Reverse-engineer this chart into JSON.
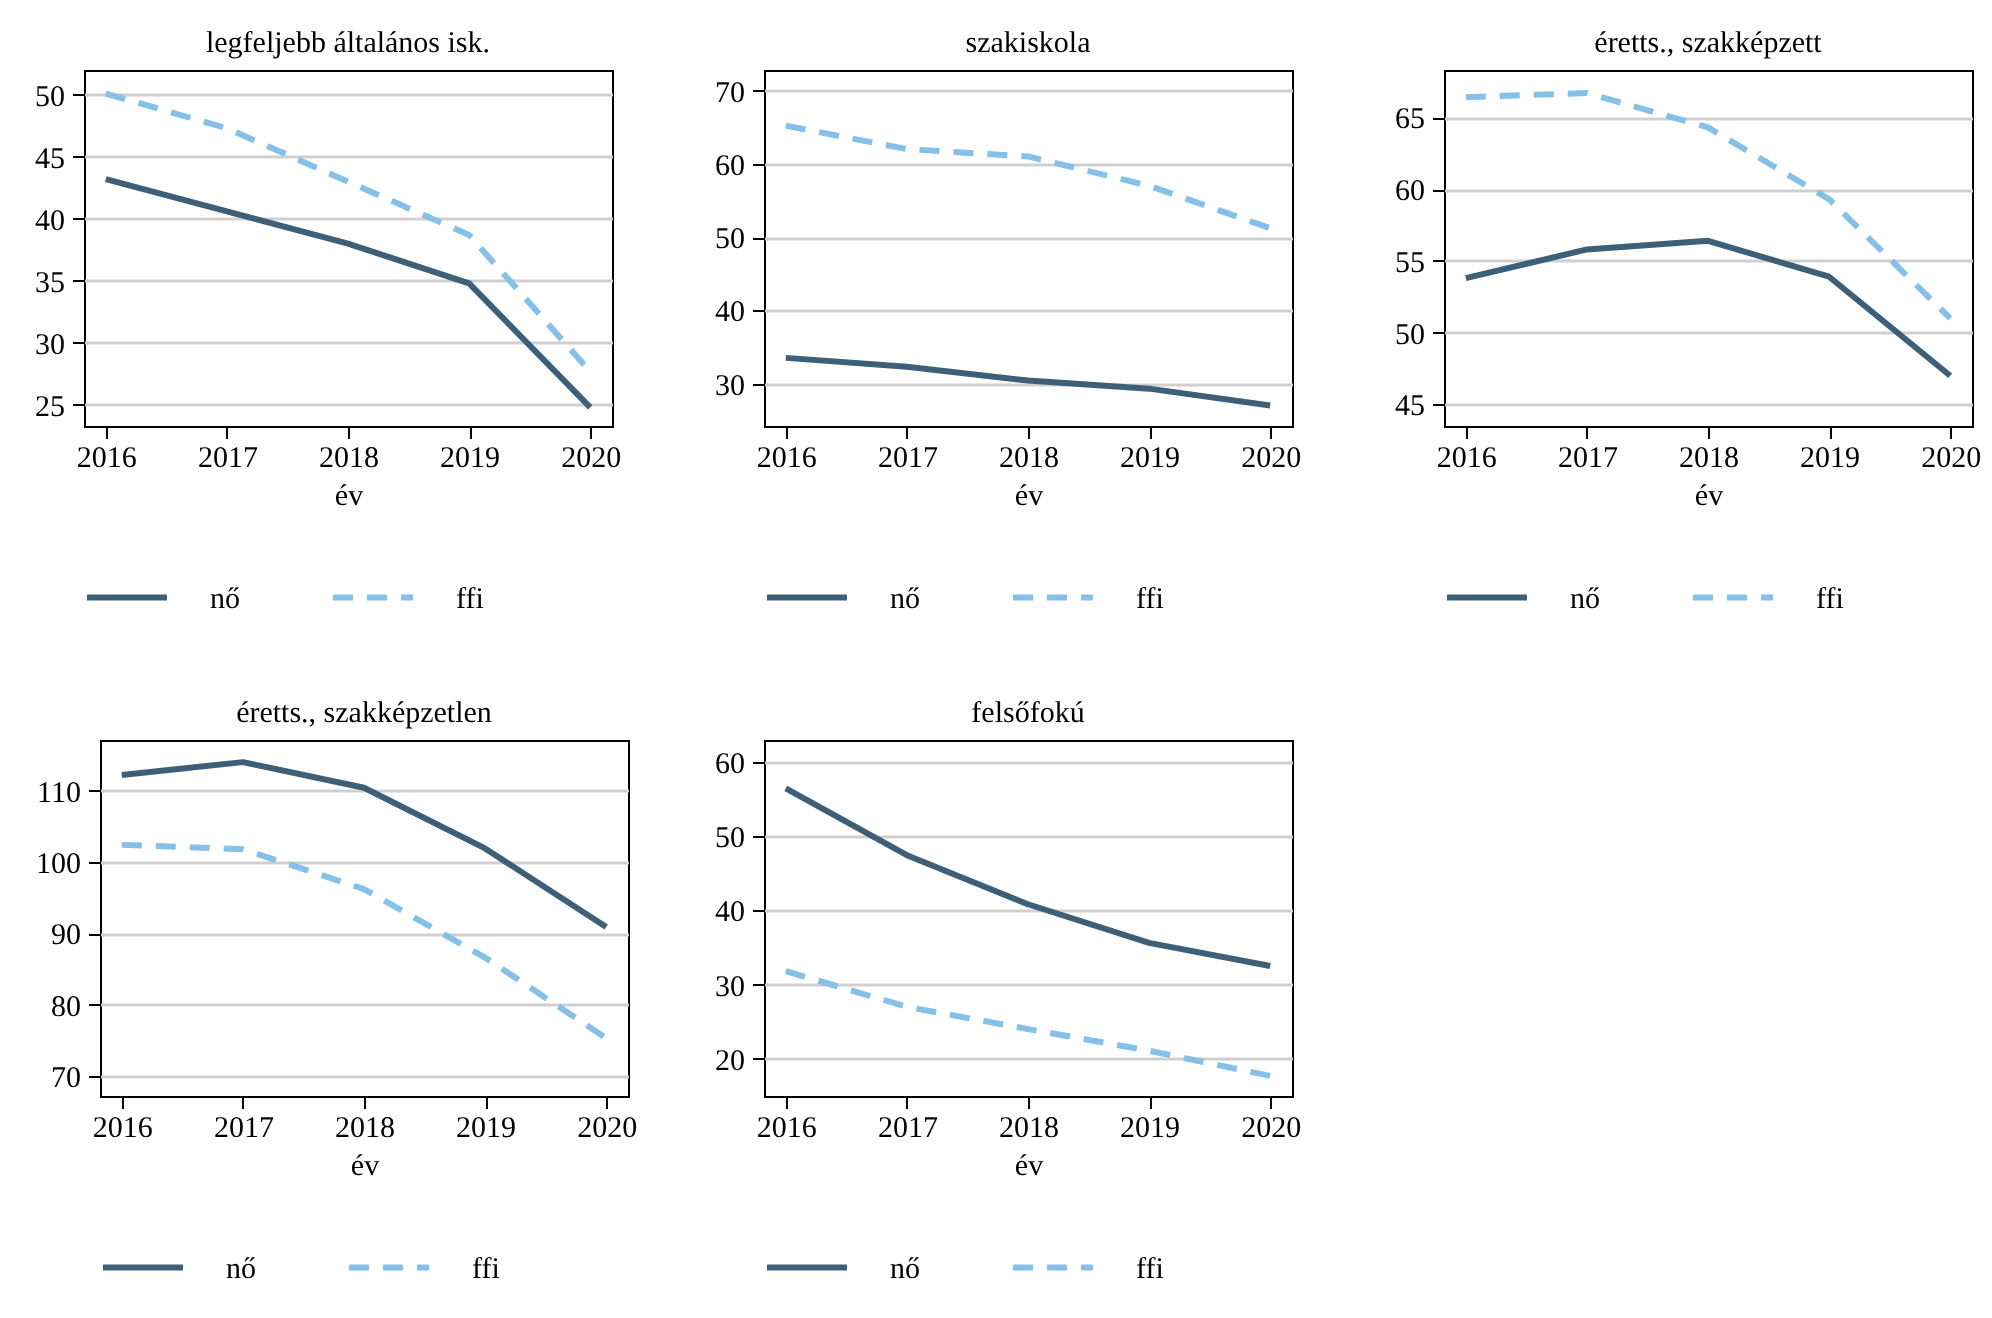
{
  "chart_data": [
    {
      "type": "line",
      "title": "legfeljebb általános isk.",
      "xlabel": "év",
      "x": [
        2016,
        2017,
        2018,
        2019,
        2020
      ],
      "xlim": [
        2015.82,
        2020.18
      ],
      "xticks": [
        2016,
        2017,
        2018,
        2019,
        2020
      ],
      "ylim": [
        23.3,
        52
      ],
      "yticks": [
        25,
        30,
        35,
        40,
        45,
        50
      ],
      "grid": "y",
      "legend": "bottom",
      "series": [
        {
          "name": "nő",
          "color": "#3e5f78",
          "line_style": "solid",
          "values": [
            43.2,
            40.6,
            38.0,
            34.8,
            24.8
          ]
        },
        {
          "name": "ffi",
          "color": "#85c0e9",
          "line_style": "dashed",
          "values": [
            50.1,
            47.3,
            43.0,
            38.7,
            27.7
          ]
        }
      ]
    },
    {
      "type": "line",
      "title": "szakiskola",
      "xlabel": "év",
      "x": [
        2016,
        2017,
        2018,
        2019,
        2020
      ],
      "xlim": [
        2015.82,
        2020.18
      ],
      "xticks": [
        2016,
        2017,
        2018,
        2019,
        2020
      ],
      "ylim": [
        24.2,
        72.8
      ],
      "yticks": [
        30,
        40,
        50,
        60,
        70
      ],
      "grid": "y",
      "legend": "bottom",
      "series": [
        {
          "name": "nő",
          "color": "#3e5f78",
          "line_style": "solid",
          "values": [
            33.5,
            32.3,
            30.4,
            29.3,
            27.0
          ]
        },
        {
          "name": "ffi",
          "color": "#85c0e9",
          "line_style": "dashed",
          "values": [
            65.2,
            62.0,
            61.0,
            57.0,
            51.2
          ]
        }
      ]
    },
    {
      "type": "line",
      "title": "éretts., szakképzett",
      "xlabel": "év",
      "x": [
        2016,
        2017,
        2018,
        2019,
        2020
      ],
      "xlim": [
        2015.82,
        2020.18
      ],
      "xticks": [
        2016,
        2017,
        2018,
        2019,
        2020
      ],
      "ylim": [
        43.5,
        68.3
      ],
      "yticks": [
        45,
        50,
        55,
        60,
        65
      ],
      "grid": "y",
      "legend": "bottom",
      "series": [
        {
          "name": "nő",
          "color": "#3e5f78",
          "line_style": "solid",
          "values": [
            53.8,
            55.8,
            56.4,
            53.9,
            47.0
          ]
        },
        {
          "name": "ffi",
          "color": "#85c0e9",
          "line_style": "dashed",
          "values": [
            66.4,
            66.7,
            64.3,
            59.3,
            51.0
          ]
        }
      ]
    },
    {
      "type": "line",
      "title": "éretts., szakképzetlen",
      "xlabel": "év",
      "x": [
        2016,
        2017,
        2018,
        2019,
        2020
      ],
      "xlim": [
        2015.82,
        2020.18
      ],
      "xticks": [
        2016,
        2017,
        2018,
        2019,
        2020
      ],
      "ylim": [
        67.2,
        117.1
      ],
      "yticks": [
        70,
        80,
        90,
        100,
        110
      ],
      "grid": "y",
      "legend": "bottom",
      "series": [
        {
          "name": "nő",
          "color": "#3e5f78",
          "line_style": "solid",
          "values": [
            112.2,
            114.0,
            110.4,
            101.9,
            90.9
          ]
        },
        {
          "name": "ffi",
          "color": "#85c0e9",
          "line_style": "dashed",
          "values": [
            102.4,
            101.8,
            96.2,
            86.6,
            75.3
          ]
        }
      ]
    },
    {
      "type": "line",
      "title": "felsőfokú",
      "xlabel": "év",
      "x": [
        2016,
        2017,
        2018,
        2019,
        2020
      ],
      "xlim": [
        2015.82,
        2020.18
      ],
      "xticks": [
        2016,
        2017,
        2018,
        2019,
        2020
      ],
      "ylim": [
        15.0,
        62.9
      ],
      "yticks": [
        20,
        30,
        40,
        50,
        60
      ],
      "grid": "y",
      "legend": "bottom",
      "series": [
        {
          "name": "nő",
          "color": "#3e5f78",
          "line_style": "solid",
          "values": [
            56.4,
            47.4,
            40.8,
            35.6,
            32.5
          ]
        },
        {
          "name": "ffi",
          "color": "#85c0e9",
          "line_style": "dashed",
          "values": [
            31.8,
            27.0,
            24.0,
            21.1,
            17.7
          ]
        }
      ]
    }
  ]
}
